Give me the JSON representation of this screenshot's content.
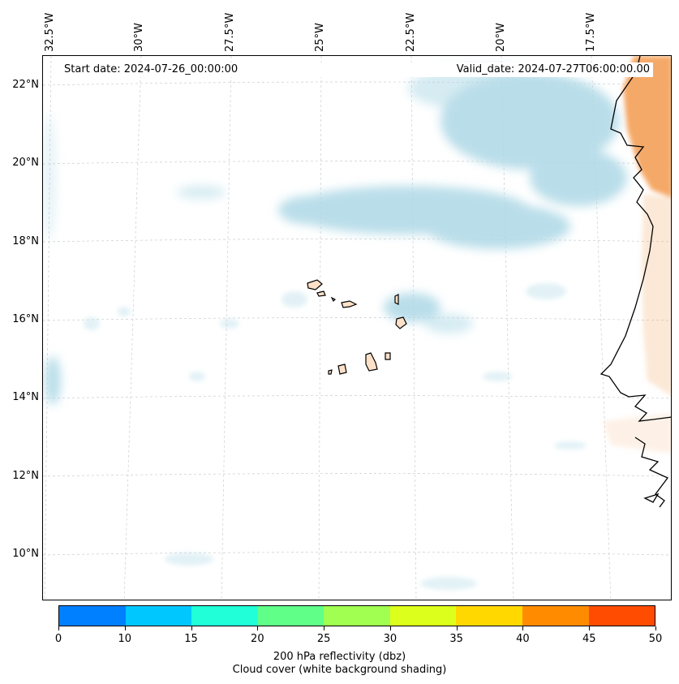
{
  "header": {
    "start_date": "Start date: 2024-07-26_00:00:00",
    "valid_date": "Valid_date: 2024-07-27T06:00:00.00"
  },
  "axes": {
    "lat_labels": [
      "22°N",
      "20°N",
      "18°N",
      "16°N",
      "14°N",
      "12°N",
      "10°N"
    ],
    "lon_labels": [
      "32.5°W",
      "30°W",
      "27.5°W",
      "25°W",
      "22.5°W",
      "20°W",
      "17.5°W"
    ]
  },
  "colorbar": {
    "ticks": [
      "0",
      "10",
      "15",
      "20",
      "25",
      "30",
      "35",
      "40",
      "45",
      "50"
    ],
    "colors": [
      "#0080ff",
      "#00c8ff",
      "#20ffd8",
      "#60ff88",
      "#a0ff50",
      "#dcff1c",
      "#ffd800",
      "#ff8c00",
      "#ff4c00"
    ],
    "label_line1": "200 hPa reflectivity (dbz)",
    "label_line2": "Cloud cover (white background shading)"
  },
  "colors": {
    "cloud": "#add8e6",
    "land_warm": "#f4a460",
    "island_fill": "#fde0c8"
  }
}
